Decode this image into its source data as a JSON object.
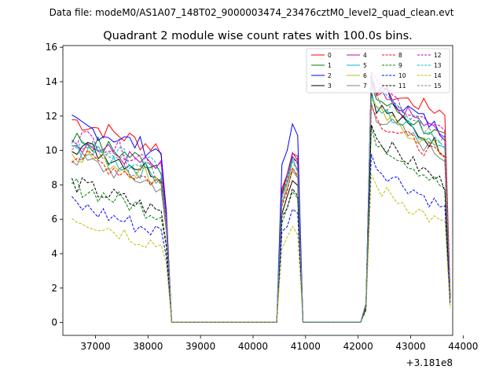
{
  "chart_data": {
    "type": "line",
    "suptitle": "Data file: modeM0/AS1A07_148T02_9000003474_23476cztM0_level2_quad_clean.evt",
    "title": "Quadrant 2 module wise count rates with 100.0s bins.",
    "xlabel": "",
    "ylabel": "",
    "x_offset_label": "+3.181e8",
    "xlim": [
      36380,
      43800
    ],
    "ylim": [
      -0.75,
      16.1
    ],
    "xticks": [
      37000,
      38000,
      39000,
      40000,
      41000,
      42000,
      43000,
      44000
    ],
    "xtick_labels": [
      "37000",
      "38000",
      "39000",
      "40000",
      "41000",
      "42000",
      "43000",
      "44000"
    ],
    "yticks": [
      0,
      2,
      4,
      6,
      8,
      10,
      12,
      14,
      16
    ],
    "ytick_labels": [
      "0",
      "2",
      "4",
      "6",
      "8",
      "10",
      "12",
      "14",
      "16"
    ],
    "legend": {
      "placement": "top-right",
      "columns": 4
    },
    "segments": [
      {
        "x_start": 36550,
        "x_end": 38350
      },
      {
        "x_start": 40550,
        "x_end": 40850
      },
      {
        "x_start": 42150,
        "x_end": 43750
      }
    ],
    "series": [
      {
        "name": "0",
        "color": "#ff0000",
        "dash": "solid",
        "level1": 11.8,
        "level2": 10.0,
        "level3": 13.6,
        "end3": 12.2
      },
      {
        "name": "1",
        "color": "#008000",
        "dash": "solid",
        "level1": 10.8,
        "level2": 9.6,
        "level3": 13.2,
        "end3": 10.6
      },
      {
        "name": "2",
        "color": "#0000ff",
        "dash": "solid",
        "level1": 11.6,
        "level2": 11.4,
        "level3": 13.8,
        "end3": 11.0
      },
      {
        "name": "3",
        "color": "#000000",
        "dash": "solid",
        "level1": 10.4,
        "level2": 8.4,
        "level3": 12.8,
        "end3": 10.0
      },
      {
        "name": "4",
        "color": "#bf00bf",
        "dash": "solid",
        "level1": 10.6,
        "level2": 9.8,
        "level3": 13.4,
        "end3": 10.8
      },
      {
        "name": "5",
        "color": "#00bfbf",
        "dash": "solid",
        "level1": 10.2,
        "level2": 9.4,
        "level3": 12.6,
        "end3": 10.2
      },
      {
        "name": "6",
        "color": "#bfbf00",
        "dash": "solid",
        "level1": 10.0,
        "level2": 9.0,
        "level3": 12.4,
        "end3": 9.8
      },
      {
        "name": "7",
        "color": "#808080",
        "dash": "solid",
        "level1": 9.6,
        "level2": 8.8,
        "level3": 12.2,
        "end3": 9.6
      },
      {
        "name": "8",
        "color": "#ff0000",
        "dash": "dashed",
        "level1": 9.8,
        "level2": 9.0,
        "level3": 12.0,
        "end3": 9.4
      },
      {
        "name": "9",
        "color": "#008000",
        "dash": "dashed",
        "level1": 8.0,
        "level2": 7.6,
        "level3": 10.8,
        "end3": 7.8
      },
      {
        "name": "10",
        "color": "#0000ff",
        "dash": "dashed",
        "level1": 6.9,
        "level2": 6.6,
        "level3": 9.2,
        "end3": 6.6
      },
      {
        "name": "11",
        "color": "#000000",
        "dash": "dashed",
        "level1": 8.1,
        "level2": 7.8,
        "level3": 10.9,
        "end3": 8.0
      },
      {
        "name": "12",
        "color": "#bf00bf",
        "dash": "dashed",
        "level1": 11.0,
        "level2": 9.6,
        "level3": 14.0,
        "end3": 10.8
      },
      {
        "name": "13",
        "color": "#00bfbf",
        "dash": "dashed",
        "level1": 10.6,
        "level2": 9.2,
        "level3": 13.6,
        "end3": 10.4
      },
      {
        "name": "14",
        "color": "#bfbf00",
        "dash": "dashed",
        "level1": 6.2,
        "level2": 5.4,
        "level3": 8.0,
        "end3": 5.6
      },
      {
        "name": "15",
        "color": "#808080",
        "dash": "dashed",
        "level1": 10.2,
        "level2": 9.4,
        "level3": 13.2,
        "end3": 10.6
      }
    ]
  }
}
